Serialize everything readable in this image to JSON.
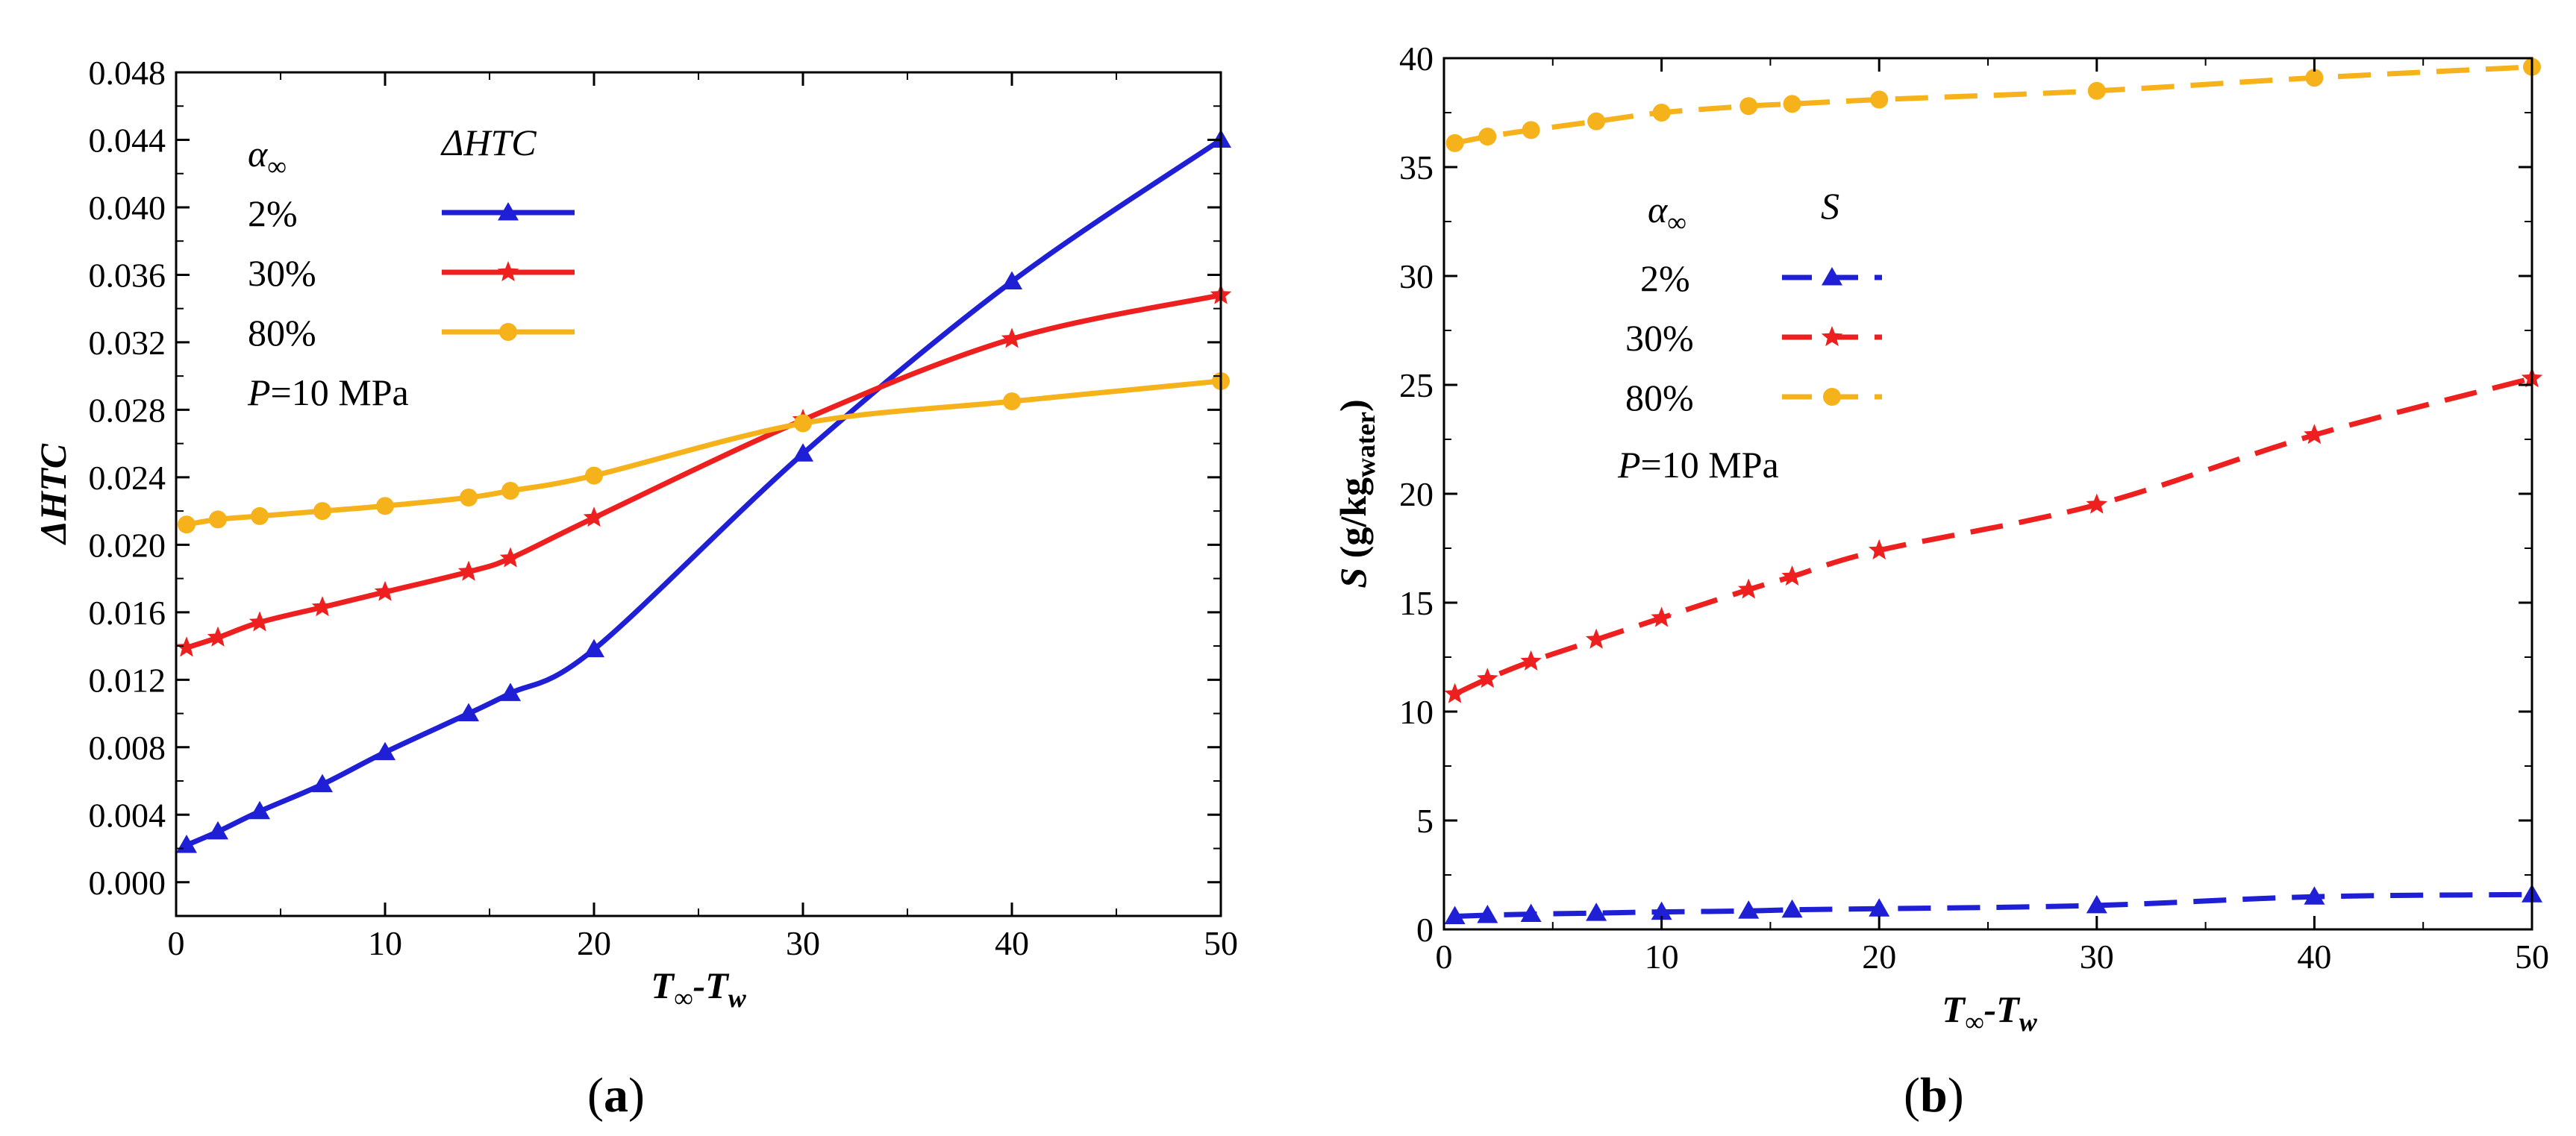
{
  "chart_data": [
    {
      "type": "line",
      "panel_label": "(a)",
      "xlabel": "T∞-Tw",
      "ylabel": "ΔHTC",
      "xlim": [
        0,
        50
      ],
      "ylim": [
        -0.002,
        0.048
      ],
      "xticks": [
        "0",
        "10",
        "20",
        "30",
        "40",
        "50"
      ],
      "yticks": [
        "0.000",
        "0.004",
        "0.008",
        "0.012",
        "0.016",
        "0.020",
        "0.024",
        "0.028",
        "0.032",
        "0.036",
        "0.040",
        "0.044",
        "0.048"
      ],
      "legend": {
        "header_symbol": "α∞",
        "header_quantity": "ΔHTC",
        "entries": [
          "2%",
          "30%",
          "80%"
        ],
        "pressure_var": "P",
        "pressure_value": "=10 MPa"
      },
      "series": [
        {
          "name": "2%",
          "color": "#1f1fd6",
          "marker": "triangle",
          "dash": "solid",
          "x": [
            0.5,
            2,
            4,
            7,
            10,
            14,
            16,
            20,
            30,
            40,
            50
          ],
          "y": [
            0.0022,
            0.003,
            0.0042,
            0.0058,
            0.0077,
            0.01,
            0.0112,
            0.0138,
            0.0254,
            0.0356,
            0.044
          ]
        },
        {
          "name": "30%",
          "color": "#ee1f1f",
          "marker": "star",
          "dash": "solid",
          "x": [
            0.5,
            2,
            4,
            7,
            10,
            14,
            16,
            20,
            30,
            40,
            50
          ],
          "y": [
            0.0139,
            0.0145,
            0.0154,
            0.0163,
            0.0172,
            0.0184,
            0.0192,
            0.0216,
            0.0274,
            0.0322,
            0.0348
          ]
        },
        {
          "name": "80%",
          "color": "#f5b21a",
          "marker": "circle",
          "dash": "solid",
          "x": [
            0.5,
            2,
            4,
            7,
            10,
            14,
            16,
            20,
            30,
            40,
            50
          ],
          "y": [
            0.0212,
            0.0215,
            0.0217,
            0.022,
            0.0223,
            0.0228,
            0.0232,
            0.0241,
            0.0272,
            0.0285,
            0.0297
          ]
        }
      ]
    },
    {
      "type": "line",
      "panel_label": "(b)",
      "xlabel": "T∞-Tw",
      "ylabel": "S (g/kgwater)",
      "xlim": [
        0,
        50
      ],
      "ylim": [
        0,
        40
      ],
      "xticks": [
        "0",
        "10",
        "20",
        "30",
        "40",
        "50"
      ],
      "yticks": [
        "0",
        "5",
        "10",
        "15",
        "20",
        "25",
        "30",
        "35",
        "40"
      ],
      "legend": {
        "header_symbol": "α∞",
        "header_quantity": "S",
        "entries": [
          "2%",
          "30%",
          "80%"
        ],
        "pressure_var": "P",
        "pressure_value": "=10 MPa"
      },
      "series": [
        {
          "name": "2%",
          "color": "#1f1fd6",
          "marker": "triangle",
          "dash": "dashed",
          "x": [
            0.5,
            2,
            4,
            7,
            10,
            14,
            16,
            20,
            30,
            40,
            50
          ],
          "y": [
            0.6,
            0.65,
            0.7,
            0.75,
            0.8,
            0.85,
            0.9,
            0.95,
            1.1,
            1.5,
            1.6
          ]
        },
        {
          "name": "30%",
          "color": "#ee1f1f",
          "marker": "star",
          "dash": "dashed",
          "x": [
            0.5,
            2,
            4,
            7,
            10,
            14,
            16,
            20,
            30,
            40,
            50
          ],
          "y": [
            10.8,
            11.5,
            12.3,
            13.3,
            14.3,
            15.6,
            16.2,
            17.4,
            19.5,
            22.7,
            25.3
          ]
        },
        {
          "name": "80%",
          "color": "#f5b21a",
          "marker": "circle",
          "dash": "dashed",
          "x": [
            0.5,
            2,
            4,
            7,
            10,
            14,
            16,
            20,
            30,
            40,
            50
          ],
          "y": [
            36.1,
            36.4,
            36.7,
            37.1,
            37.5,
            37.8,
            37.9,
            38.1,
            38.5,
            39.1,
            39.6
          ]
        }
      ]
    }
  ]
}
